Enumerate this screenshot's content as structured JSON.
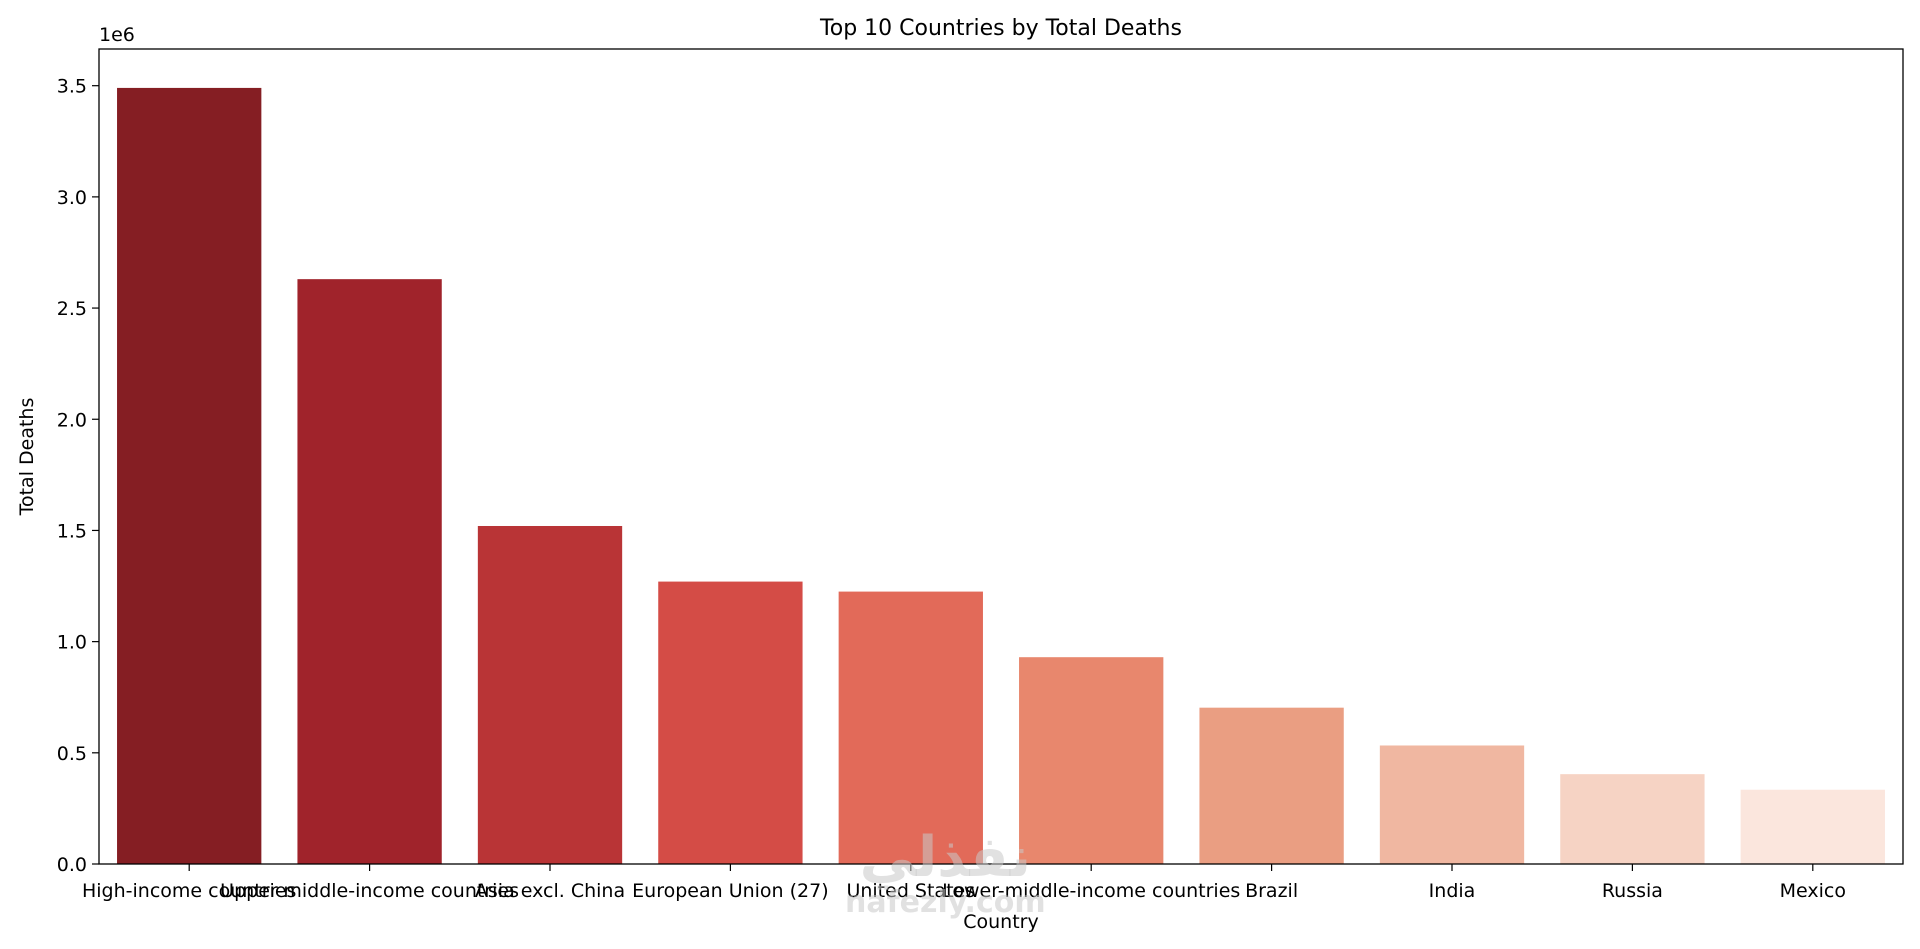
{
  "chart_data": {
    "type": "bar",
    "title": "Top 10 Countries by Total Deaths",
    "xlabel": "Country",
    "ylabel": "Total Deaths",
    "y_offset_label": "1e6",
    "categories": [
      "High-income countries",
      "Upper-middle-income countries",
      "Asia excl. China",
      "European Union (27)",
      "United States",
      "Lower-middle-income countries",
      "Brazil",
      "India",
      "Russia",
      "Mexico"
    ],
    "values": [
      3490000,
      2630000,
      1520000,
      1270000,
      1225000,
      930000,
      703000,
      533000,
      404000,
      334000
    ],
    "colors": [
      "#851e23",
      "#a0232b",
      "#b93436",
      "#d44c46",
      "#e26a59",
      "#e8876d",
      "#ea9e82",
      "#f0b7a1",
      "#f6d3c4",
      "#fbe6dd"
    ],
    "ylim": [
      0,
      3665000
    ],
    "yticks": [
      0,
      500000,
      1000000,
      1500000,
      2000000,
      2500000,
      3000000,
      3500000
    ],
    "ytick_labels": [
      "0.0",
      "0.5",
      "1.0",
      "1.5",
      "2.0",
      "2.5",
      "3.0",
      "3.5"
    ],
    "grid": false
  },
  "watermark": {
    "arabic": "نفذلي",
    "latin": "nafezly.com"
  }
}
